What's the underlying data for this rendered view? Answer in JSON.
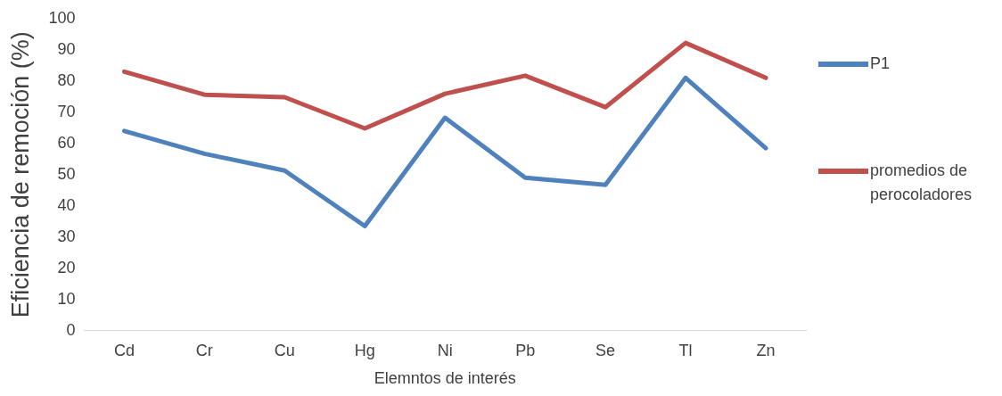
{
  "chart_data": {
    "type": "line",
    "xlabel": "Elemntos de interés",
    "ylabel": "Eficiencia de remoción (%)",
    "categories": [
      "Cd",
      "Cr",
      "Cu",
      "Hg",
      "Ni",
      "Pb",
      "Se",
      "Tl",
      "Zn"
    ],
    "series": [
      {
        "name": "P1",
        "color": "#4f81bd",
        "values": [
          64,
          56.7,
          51.3,
          33.5,
          68.2,
          49,
          46.7,
          81,
          58.5
        ]
      },
      {
        "name": "promedios de perocoladores",
        "color": "#c0504d",
        "values": [
          83,
          75.6,
          74.8,
          64.8,
          75.9,
          81.7,
          71.6,
          92.2,
          81
        ]
      }
    ],
    "ylim": [
      0,
      100
    ],
    "yticks": [
      0,
      10,
      20,
      30,
      40,
      50,
      60,
      70,
      80,
      90,
      100
    ],
    "grid": false,
    "legend": "right",
    "marker": "none",
    "line_style": "solid"
  }
}
